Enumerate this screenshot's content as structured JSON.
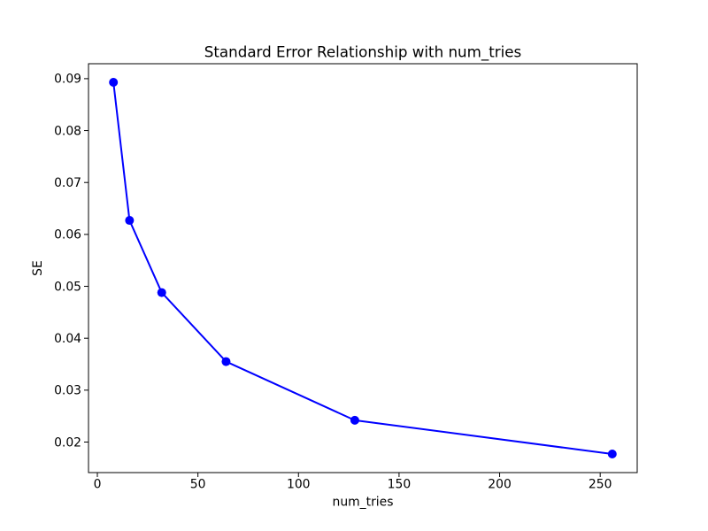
{
  "figure": {
    "background_color": "#ffffff",
    "frame_color": "#000000"
  },
  "chart_data": {
    "type": "line",
    "title": "Standard Error Relationship with num_tries",
    "xlabel": "num_tries",
    "ylabel": "SE",
    "x": [
      8,
      16,
      32,
      64,
      128,
      256
    ],
    "y": [
      0.0893,
      0.0627,
      0.0488,
      0.0355,
      0.0242,
      0.0177
    ],
    "series_name": "SE",
    "line_color": "#0000ff",
    "marker": "circle",
    "marker_color": "#0000ff",
    "x_ticks": [
      0,
      50,
      100,
      150,
      200,
      250
    ],
    "x_tick_labels": [
      "0",
      "50",
      "100",
      "150",
      "200",
      "250"
    ],
    "y_ticks": [
      0.02,
      0.03,
      0.04,
      0.05,
      0.06,
      0.07,
      0.08,
      0.09
    ],
    "y_tick_labels": [
      "0.02",
      "0.03",
      "0.04",
      "0.05",
      "0.06",
      "0.07",
      "0.08",
      "0.09"
    ],
    "xlim": [
      -4.4,
      268.4
    ],
    "ylim": [
      0.01412,
      0.09288
    ],
    "grid": false,
    "legend": null
  }
}
